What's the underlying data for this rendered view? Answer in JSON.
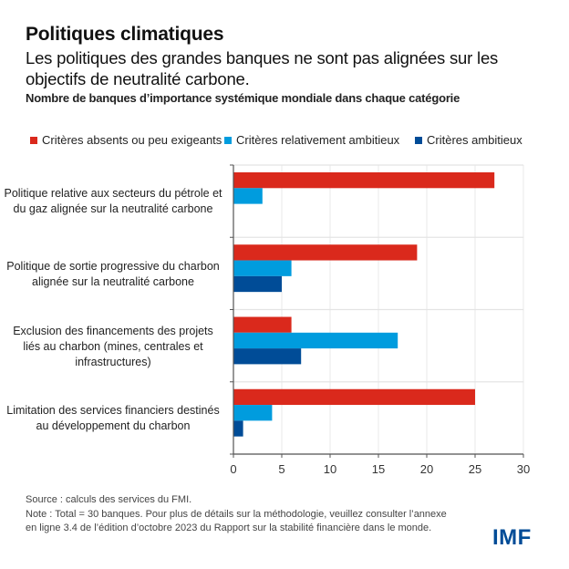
{
  "header": {
    "title": "Politiques climatiques",
    "subtitle": "Les politiques des grandes banques ne sont pas alignées sur les objectifs de neutralité carbone.",
    "unit_label": "Nombre de banques d’importance systémique mondiale dans chaque catégorie"
  },
  "chart_data": {
    "type": "bar",
    "orientation": "horizontal",
    "title": "Politiques climatiques",
    "subtitle": "Nombre de banques d’importance systémique mondiale dans chaque catégorie",
    "categories": [
      "Politique relative aux secteurs du pétrole et du gaz alignée sur la neutralité carbone",
      "Politique de sortie progressive du charbon alignée sur la neutralité carbone",
      "Exclusion des financements des projets liés au charbon (mines, centrales et infrastructures)",
      "Limitation des services financiers destinés au développement du charbon"
    ],
    "series": [
      {
        "name": "Critères absents ou peu exigeants",
        "color": "#DA291C",
        "values": [
          27,
          19,
          6,
          25
        ]
      },
      {
        "name": "Critères relativement ambitieux",
        "color": "#009CDE",
        "values": [
          3,
          6,
          17,
          4
        ]
      },
      {
        "name": "Critères ambitieux",
        "color": "#004C97",
        "values": [
          0,
          5,
          7,
          1
        ]
      }
    ],
    "xlabel": "",
    "ylabel": "",
    "xlim": [
      0,
      30
    ],
    "xticks": [
      0,
      5,
      10,
      15,
      20,
      25,
      30
    ],
    "grid": true,
    "legend_position": "top"
  },
  "footer": {
    "source": "Source : calculs des services du FMI.",
    "note": "Note : Total = 30 banques. Pour plus de détails sur la méthodologie, veuillez consulter l’annexe en ligne 3.4 de l’édition d’octobre 2023 du Rapport sur la stabilité financière dans le monde.",
    "logo": "IMF"
  }
}
